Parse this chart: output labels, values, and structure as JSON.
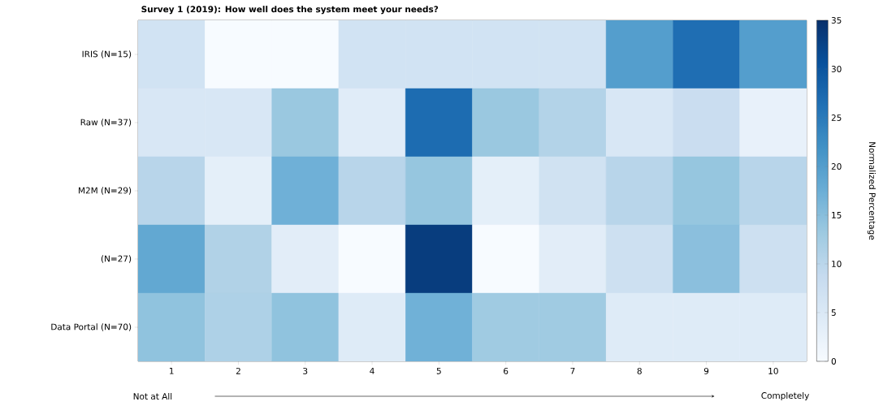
{
  "chart_data": {
    "type": "heatmap",
    "title": "Survey 1 (2019): How well does the system meet your needs?",
    "categories": [
      "1",
      "2",
      "3",
      "4",
      "5",
      "6",
      "7",
      "8",
      "9",
      "10"
    ],
    "y_categories": [
      "IRIS (N=15)",
      "Raw (N=37)",
      "M2M (N=29)",
      "(N=27)",
      "Data Portal (N=70)"
    ],
    "cells": [
      [
        6.7,
        0,
        0,
        6.7,
        6.7,
        6.7,
        6.7,
        20,
        26.7,
        20
      ],
      [
        5.4,
        5.4,
        13.5,
        4,
        27,
        13.5,
        10.8,
        5.4,
        8.1,
        2.7
      ],
      [
        10.3,
        3.4,
        17.2,
        10.3,
        13.8,
        3.4,
        6.9,
        10.3,
        13.8,
        10.3
      ],
      [
        18.5,
        11.1,
        3.7,
        0,
        33.3,
        0,
        3.7,
        7.4,
        14.8,
        7.4
      ],
      [
        14.3,
        11.4,
        14.3,
        4.3,
        17.1,
        12.9,
        12.9,
        4.3,
        4.3,
        4.3
      ]
    ],
    "clim": [
      0,
      35
    ],
    "cticks": [
      0,
      5,
      10,
      15,
      20,
      25,
      30,
      35
    ],
    "clabel": "Normalized Percentage",
    "annotations": [
      "Not at All",
      "Completely"
    ]
  }
}
